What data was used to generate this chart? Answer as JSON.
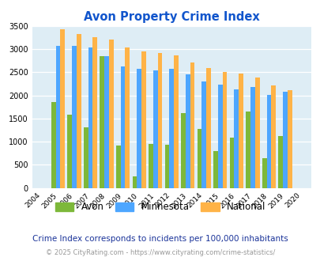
{
  "title": "Avon Property Crime Index",
  "years": [
    2004,
    2005,
    2006,
    2007,
    2008,
    2009,
    2010,
    2011,
    2012,
    2013,
    2014,
    2015,
    2016,
    2017,
    2018,
    2019,
    2020
  ],
  "avon": [
    0,
    1850,
    1580,
    1310,
    2850,
    910,
    250,
    950,
    940,
    1610,
    1270,
    790,
    1080,
    1650,
    640,
    1120,
    0
  ],
  "minnesota": [
    0,
    3070,
    3070,
    3030,
    2850,
    2620,
    2570,
    2550,
    2570,
    2450,
    2310,
    2230,
    2140,
    2180,
    2010,
    2080,
    0
  ],
  "national": [
    0,
    3430,
    3330,
    3260,
    3210,
    3040,
    2950,
    2910,
    2860,
    2720,
    2600,
    2500,
    2470,
    2380,
    2210,
    2110,
    0
  ],
  "avon_color": "#7db83a",
  "minnesota_color": "#4da6ff",
  "national_color": "#ffb347",
  "plot_bg_color": "#deedf5",
  "title_color": "#1155cc",
  "footer1_color": "#1a3399",
  "footer2_color": "#999999",
  "ylim": [
    0,
    3500
  ],
  "yticks": [
    0,
    500,
    1000,
    1500,
    2000,
    2500,
    3000,
    3500
  ],
  "footer_text1": "Crime Index corresponds to incidents per 100,000 inhabitants",
  "footer_text2": "© 2025 CityRating.com - https://www.cityrating.com/crime-statistics/",
  "bar_width": 0.28
}
